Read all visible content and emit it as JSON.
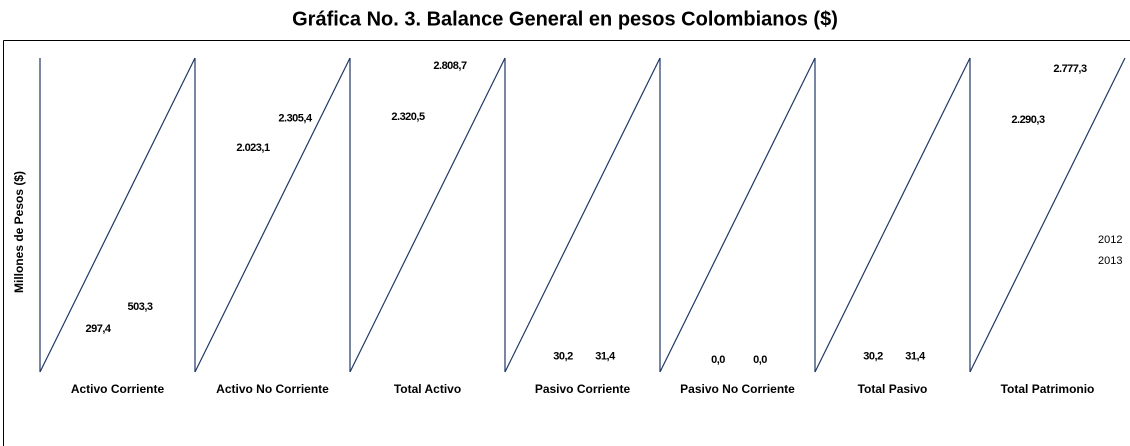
{
  "chart_data": {
    "type": "bar",
    "title": "Gráfica No. 3. Balance General en pesos Colombianos ($)",
    "y_label": "Millones de Pesos ($)",
    "categories": [
      "Activo Corriente",
      "Activo No Corriente",
      "Total Activo",
      "Pasivo Corriente",
      "Pasivo No Corriente",
      "Total Pasivo",
      "Total Patrimonio"
    ],
    "series": [
      {
        "name": "2012",
        "values": [
          297.4,
          2023.1,
          2320.5,
          30.2,
          0.0,
          30.2,
          2290.3
        ],
        "value_labels": [
          "297,4",
          "2.023,1",
          "2.320,5",
          "30,2",
          "0,0",
          "30,2",
          "2.290,3"
        ]
      },
      {
        "name": "2013",
        "values": [
          503.3,
          2305.4,
          2808.7,
          31.4,
          0.0,
          31.4,
          2777.3
        ],
        "value_labels": [
          "503,3",
          "2.305,4",
          "2.808,7",
          "31,4",
          "0,0",
          "31,4",
          "2.777,3"
        ]
      }
    ],
    "legend": "right"
  }
}
